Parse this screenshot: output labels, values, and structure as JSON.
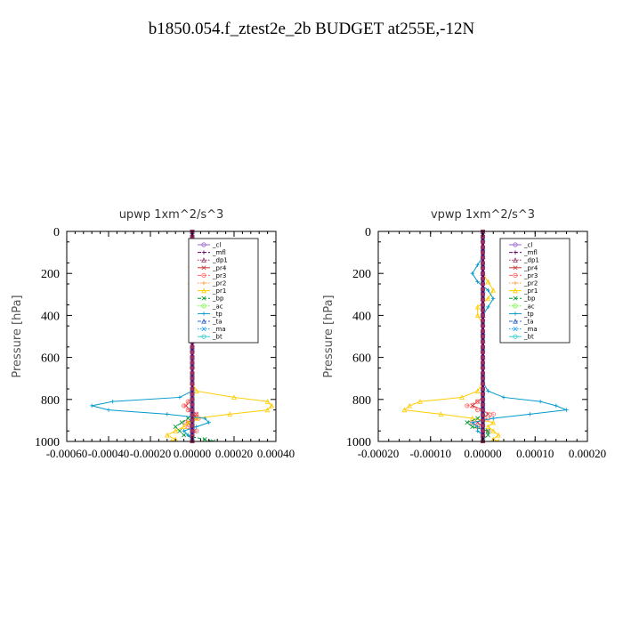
{
  "page": {
    "title": "b1850.054.f_ztest2e_2b  BUDGET at255E,-12N"
  },
  "chart_data": [
    {
      "type": "line",
      "title": "upwp   1xm^2/s^3",
      "ylabel": "Pressure [hPa]",
      "xlim": [
        -0.0006,
        0.0004
      ],
      "ylim": [
        1000,
        0
      ],
      "xticks": [
        -0.0006,
        -0.0004,
        -0.0002,
        0.0,
        0.0002,
        0.0004
      ],
      "xtick_labels": [
        "-0.00060",
        "-0.00040",
        "-0.00020",
        "0.00000",
        "0.00020",
        "0.00040"
      ],
      "yticks": [
        0,
        200,
        400,
        600,
        800,
        1000
      ],
      "ytick_labels": [
        "0",
        "200",
        "400",
        "600",
        "800",
        "1000"
      ],
      "legend_position": "top-right",
      "levels": [
        0,
        40,
        80,
        120,
        160,
        200,
        240,
        280,
        320,
        360,
        400,
        440,
        480,
        520,
        560,
        600,
        640,
        680,
        720,
        760,
        790,
        810,
        830,
        850,
        870,
        890,
        910,
        930,
        950,
        970,
        990,
        1000
      ],
      "series": [
        {
          "name": "_cl",
          "color": "#9966cc",
          "values": [
            0,
            0,
            0,
            0,
            0,
            0,
            0,
            0,
            0,
            0,
            0,
            0,
            0,
            0,
            0,
            0,
            0,
            0,
            0,
            0,
            0,
            0,
            0,
            0,
            0,
            0,
            0,
            0,
            0,
            0,
            0,
            0
          ]
        },
        {
          "name": "_mfl",
          "color": "#660066",
          "values": [
            0,
            0,
            0,
            0,
            0,
            0,
            0,
            0,
            0,
            0,
            0,
            0,
            0,
            0,
            0,
            0,
            0,
            0,
            0,
            0,
            0,
            0,
            0,
            0,
            0,
            0,
            0,
            0,
            0,
            0,
            0,
            0
          ]
        },
        {
          "name": "_dp1",
          "color": "#993366",
          "values": [
            0,
            0,
            0,
            0,
            0,
            0,
            0,
            0,
            0,
            0,
            0,
            0,
            0,
            0,
            0,
            0,
            0,
            0,
            0,
            0,
            0,
            0,
            0,
            0,
            0,
            0,
            0,
            0,
            0,
            0,
            0,
            0
          ]
        },
        {
          "name": "_pr4",
          "color": "#cc3333",
          "values": [
            0,
            0,
            0,
            0,
            0,
            0,
            0,
            0,
            0,
            0,
            0,
            0,
            0,
            0,
            0,
            0,
            0,
            0,
            0,
            0,
            0,
            -1e-05,
            -3e-05,
            -1e-05,
            2e-05,
            1e-05,
            -2e-05,
            0,
            1e-05,
            0,
            0,
            0
          ]
        },
        {
          "name": "_pr3",
          "color": "#ff6666",
          "values": [
            0,
            0,
            0,
            0,
            0,
            0,
            0,
            0,
            0,
            0,
            0,
            0,
            0,
            0,
            0,
            0,
            0,
            0,
            0,
            0,
            0,
            -2e-05,
            -4e-05,
            -2e-05,
            2e-05,
            3e-05,
            -3e-05,
            -2e-05,
            2e-05,
            0,
            0,
            0
          ]
        },
        {
          "name": "_pr2",
          "color": "#ff9933",
          "values": [
            0,
            0,
            0,
            0,
            0,
            0,
            0,
            0,
            0,
            0,
            0,
            0,
            0,
            0,
            0,
            0,
            0,
            0,
            0,
            0,
            0,
            0,
            0,
            0,
            0,
            0,
            0,
            0,
            0,
            0,
            0,
            0
          ]
        },
        {
          "name": "_pr1",
          "color": "#ffcc00",
          "values": [
            0,
            0,
            0,
            0,
            -1e-05,
            1e-05,
            -1e-05,
            0,
            0,
            0,
            0,
            0,
            0,
            0,
            0,
            0,
            0,
            0,
            0,
            2e-05,
            0.0002,
            0.00036,
            0.00038,
            0.00036,
            0.00018,
            2e-05,
            -2e-05,
            -4e-05,
            -8e-05,
            -0.00012,
            -8e-05,
            -0.0001
          ]
        },
        {
          "name": "_bp",
          "color": "#009933",
          "values": [
            0,
            0,
            0,
            0,
            0,
            0,
            0,
            0,
            0,
            0,
            0,
            0,
            0,
            0,
            0,
            0,
            0,
            0,
            0,
            0,
            0,
            0,
            0,
            0,
            0,
            -2e-05,
            -5e-05,
            -8e-05,
            -6e-05,
            -4e-05,
            6e-05,
            0.0001
          ]
        },
        {
          "name": "_ac",
          "color": "#66ff33",
          "values": [
            0,
            0,
            0,
            0,
            0,
            0,
            0,
            0,
            0,
            0,
            0,
            0,
            0,
            0,
            0,
            0,
            0,
            0,
            0,
            0,
            0,
            0,
            0,
            0,
            0,
            0,
            0,
            0,
            0,
            0,
            0,
            0
          ]
        },
        {
          "name": "_tp",
          "color": "#0099cc",
          "values": [
            0,
            0,
            0,
            0,
            1e-05,
            -1e-05,
            1e-05,
            0,
            0,
            0,
            0,
            0,
            0,
            0,
            0,
            0,
            0,
            0,
            0,
            0,
            -6e-05,
            -0.00038,
            -0.00048,
            -0.0004,
            -0.00012,
            6e-05,
            8e-05,
            2e-05,
            -4e-05,
            -2e-05,
            0,
            0
          ]
        },
        {
          "name": "_ta",
          "color": "#3366cc",
          "values": [
            0,
            0,
            0,
            0,
            0,
            0,
            0,
            0,
            0,
            0,
            0,
            0,
            0,
            0,
            0,
            0,
            0,
            0,
            0,
            0,
            0,
            0,
            0,
            0,
            0,
            0,
            0,
            0,
            0,
            0,
            0,
            0
          ]
        },
        {
          "name": "_ma",
          "color": "#0099ff",
          "values": [
            0,
            0,
            0,
            0,
            0,
            0,
            0,
            0,
            0,
            0,
            0,
            0,
            0,
            0,
            0,
            0,
            0,
            0,
            0,
            0,
            0,
            0,
            0,
            0,
            0,
            0,
            0,
            0,
            0,
            0,
            0,
            0
          ]
        },
        {
          "name": "_bt",
          "color": "#33cccc",
          "values": [
            0,
            0,
            0,
            0,
            0,
            0,
            0,
            0,
            0,
            0,
            0,
            0,
            0,
            0,
            0,
            0,
            0,
            0,
            0,
            0,
            0,
            0,
            0,
            0,
            0,
            0,
            0,
            0,
            0,
            0,
            0,
            0
          ]
        }
      ]
    },
    {
      "type": "line",
      "title": "vpwp   1xm^2/s^3",
      "ylabel": "Pressure [hPa]",
      "xlim": [
        -0.0002,
        0.0002
      ],
      "ylim": [
        1000,
        0
      ],
      "xticks": [
        -0.0002,
        -0.0001,
        0.0,
        0.0001,
        0.0002
      ],
      "xtick_labels": [
        "-0.00020",
        "-0.00010",
        "0.00000",
        "0.00010",
        "0.00020"
      ],
      "yticks": [
        0,
        200,
        400,
        600,
        800,
        1000
      ],
      "ytick_labels": [
        "0",
        "200",
        "400",
        "600",
        "800",
        "1000"
      ],
      "legend_position": "top-right",
      "levels": [
        0,
        40,
        80,
        120,
        160,
        200,
        240,
        280,
        320,
        360,
        400,
        440,
        480,
        520,
        560,
        600,
        640,
        680,
        720,
        760,
        790,
        810,
        830,
        850,
        870,
        890,
        910,
        930,
        950,
        970,
        990,
        1000
      ],
      "series": [
        {
          "name": "_cl",
          "color": "#9966cc",
          "values": [
            0,
            0,
            0,
            0,
            0,
            0,
            0,
            0,
            0,
            0,
            0,
            0,
            0,
            0,
            0,
            0,
            0,
            0,
            0,
            0,
            0,
            0,
            0,
            0,
            0,
            0,
            0,
            0,
            0,
            0,
            0,
            0
          ]
        },
        {
          "name": "_mfl",
          "color": "#660066",
          "values": [
            0,
            0,
            0,
            0,
            0,
            0,
            0,
            0,
            0,
            0,
            0,
            0,
            0,
            0,
            0,
            0,
            0,
            0,
            0,
            0,
            0,
            0,
            0,
            0,
            0,
            0,
            0,
            0,
            0,
            0,
            0,
            0
          ]
        },
        {
          "name": "_dp1",
          "color": "#993366",
          "values": [
            0,
            0,
            0,
            0,
            0,
            0,
            0,
            0,
            0,
            0,
            0,
            0,
            0,
            0,
            0,
            0,
            0,
            0,
            0,
            0,
            0,
            0,
            0,
            0,
            0,
            0,
            0,
            0,
            0,
            0,
            0,
            0
          ]
        },
        {
          "name": "_pr4",
          "color": "#cc3333",
          "values": [
            0,
            0,
            0,
            0,
            0,
            0,
            0,
            0,
            0,
            0,
            0,
            0,
            0,
            0,
            0,
            0,
            0,
            0,
            0,
            0,
            0,
            -1e-05,
            -2e-05,
            0,
            1e-05,
            0,
            -1e-05,
            0,
            0,
            0,
            0,
            0
          ]
        },
        {
          "name": "_pr3",
          "color": "#ff6666",
          "values": [
            0,
            0,
            0,
            0,
            0,
            0,
            0,
            0,
            0,
            0,
            0,
            0,
            0,
            0,
            0,
            0,
            0,
            0,
            0,
            0,
            0,
            -1e-05,
            -3e-05,
            -1e-05,
            2e-05,
            1e-05,
            -2e-05,
            -1e-05,
            1e-05,
            0,
            0,
            0
          ]
        },
        {
          "name": "_pr2",
          "color": "#ff9933",
          "values": [
            0,
            0,
            0,
            0,
            0,
            0,
            0,
            0,
            0,
            0,
            0,
            0,
            0,
            0,
            0,
            0,
            0,
            0,
            0,
            0,
            0,
            0,
            0,
            0,
            0,
            0,
            0,
            0,
            0,
            0,
            0,
            0
          ]
        },
        {
          "name": "_pr1",
          "color": "#ffcc00",
          "values": [
            0,
            0,
            0,
            0,
            0,
            0,
            1e-05,
            2e-05,
            1e-05,
            -1e-05,
            -1e-05,
            0,
            0,
            0,
            0,
            0,
            0,
            0,
            0,
            -1e-05,
            -4e-05,
            -0.00012,
            -0.00014,
            -0.00015,
            -8e-05,
            -2e-05,
            2e-05,
            1e-05,
            2e-05,
            3e-05,
            2e-05,
            3e-05
          ]
        },
        {
          "name": "_bp",
          "color": "#009933",
          "values": [
            0,
            0,
            0,
            0,
            0,
            0,
            0,
            0,
            0,
            0,
            0,
            0,
            0,
            0,
            0,
            0,
            0,
            0,
            0,
            0,
            0,
            0,
            0,
            0,
            0,
            -1e-05,
            -3e-05,
            -2e-05,
            1e-05,
            1e-05,
            0,
            0
          ]
        },
        {
          "name": "_ac",
          "color": "#66ff33",
          "values": [
            0,
            0,
            0,
            0,
            0,
            0,
            0,
            0,
            0,
            0,
            0,
            0,
            0,
            0,
            0,
            0,
            0,
            0,
            0,
            0,
            0,
            0,
            0,
            0,
            0,
            0,
            0,
            0,
            0,
            0,
            0,
            0
          ]
        },
        {
          "name": "_tp",
          "color": "#0099cc",
          "values": [
            0,
            0,
            0,
            0,
            -1e-05,
            -2e-05,
            -1e-05,
            1e-05,
            2e-05,
            1e-05,
            0,
            0,
            0,
            0,
            0,
            0,
            0,
            0,
            0,
            1e-05,
            4e-05,
            0.00011,
            0.00014,
            0.00016,
            9e-05,
            2e-05,
            -2e-05,
            -1e-05,
            -1e-05,
            0,
            0,
            0
          ]
        },
        {
          "name": "_ta",
          "color": "#3366cc",
          "values": [
            0,
            0,
            0,
            0,
            0,
            0,
            0,
            0,
            0,
            0,
            0,
            0,
            0,
            0,
            0,
            0,
            0,
            0,
            0,
            0,
            0,
            0,
            0,
            0,
            0,
            0,
            0,
            0,
            0,
            0,
            0,
            0
          ]
        },
        {
          "name": "_ma",
          "color": "#0099ff",
          "values": [
            0,
            0,
            0,
            0,
            0,
            0,
            0,
            0,
            0,
            0,
            0,
            0,
            0,
            0,
            0,
            0,
            0,
            0,
            0,
            0,
            0,
            0,
            0,
            0,
            0,
            0,
            0,
            0,
            0,
            0,
            0,
            0
          ]
        },
        {
          "name": "_bt",
          "color": "#33cccc",
          "values": [
            0,
            0,
            0,
            0,
            0,
            0,
            0,
            0,
            0,
            0,
            0,
            0,
            0,
            0,
            0,
            0,
            0,
            0,
            0,
            0,
            0,
            0,
            0,
            0,
            0,
            0,
            0,
            0,
            0,
            0,
            0,
            0
          ]
        }
      ]
    }
  ]
}
